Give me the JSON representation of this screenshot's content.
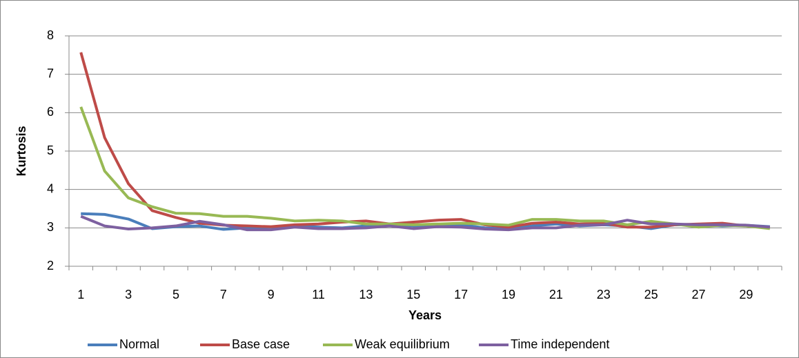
{
  "chart_data": {
    "type": "line",
    "y_label": "Kurtosis",
    "x_label": "Years",
    "categories": [
      "1",
      null,
      "3",
      null,
      "5",
      null,
      "7",
      null,
      "9",
      null,
      "11",
      null,
      "13",
      null,
      "15",
      null,
      "17",
      null,
      "19",
      null,
      "21",
      null,
      "23",
      null,
      "25",
      null,
      "27",
      null,
      "29",
      null
    ],
    "ylim": [
      2,
      8
    ],
    "yticks": [
      2,
      3,
      4,
      5,
      6,
      7,
      8
    ],
    "grid": true,
    "legend": "bottom",
    "series": [
      {
        "name": "Normal",
        "color": "#4a7ebb",
        "values": [
          3.37,
          3.35,
          3.23,
          2.98,
          3.03,
          3.05,
          2.96,
          3.0,
          3.02,
          3.05,
          3.02,
          3.0,
          3.05,
          3.1,
          3.05,
          3.05,
          3.08,
          3.0,
          2.97,
          3.05,
          3.1,
          3.05,
          3.08,
          3.05,
          2.98,
          3.08,
          3.07,
          3.05,
          3.07,
          3.03
        ]
      },
      {
        "name": "Base case",
        "color": "#be4b48",
        "values": [
          7.57,
          5.35,
          4.15,
          3.45,
          3.27,
          3.12,
          3.07,
          3.05,
          3.03,
          3.08,
          3.1,
          3.15,
          3.18,
          3.1,
          3.15,
          3.2,
          3.22,
          3.08,
          3.02,
          3.12,
          3.15,
          3.1,
          3.12,
          3.02,
          3.02,
          3.08,
          3.1,
          3.12,
          3.05,
          3.0
        ]
      },
      {
        "name": "Weak equilibrium",
        "color": "#98b954",
        "values": [
          6.15,
          4.48,
          3.78,
          3.55,
          3.38,
          3.37,
          3.3,
          3.3,
          3.25,
          3.18,
          3.2,
          3.18,
          3.1,
          3.1,
          3.08,
          3.1,
          3.12,
          3.1,
          3.07,
          3.22,
          3.22,
          3.18,
          3.18,
          3.08,
          3.17,
          3.1,
          3.02,
          3.07,
          3.05,
          2.98
        ]
      },
      {
        "name": "Time independent",
        "color": "#7d60a0",
        "values": [
          3.3,
          3.05,
          2.97,
          3.0,
          3.05,
          3.17,
          3.08,
          2.95,
          2.95,
          3.02,
          2.98,
          2.98,
          3.0,
          3.05,
          2.98,
          3.03,
          3.02,
          2.97,
          2.95,
          3.0,
          3.0,
          3.07,
          3.08,
          3.2,
          3.1,
          3.1,
          3.08,
          3.08,
          3.07,
          3.02
        ]
      }
    ]
  }
}
